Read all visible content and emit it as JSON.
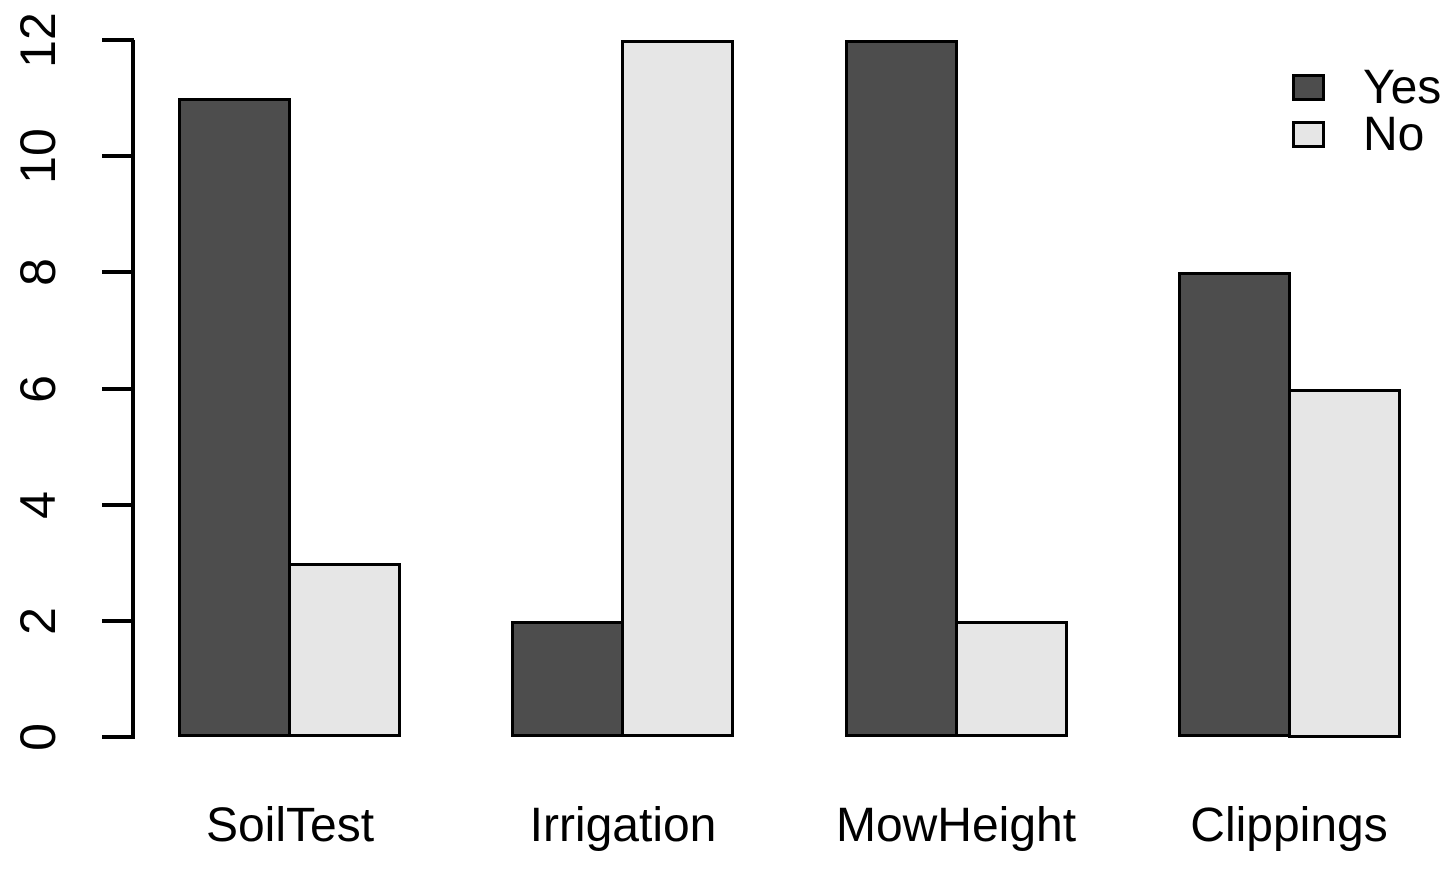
{
  "chart_data": {
    "type": "bar",
    "title": "",
    "xlabel": "",
    "ylabel": "",
    "categories": [
      "SoilTest",
      "Irrigation",
      "MowHeight",
      "Clippings"
    ],
    "series": [
      {
        "name": "Yes",
        "color": "#4d4d4d",
        "values": [
          11,
          2,
          12,
          8
        ]
      },
      {
        "name": "No",
        "color": "#e6e6e6",
        "values": [
          3,
          12,
          2,
          6
        ]
      }
    ],
    "ylim": [
      0,
      12
    ],
    "yticks": [
      0,
      2,
      4,
      6,
      8,
      10,
      12
    ],
    "grid": false,
    "legend_position": "top-right",
    "bar_border_color": "#000000",
    "axis_color": "#000000",
    "background_color": "#ffffff"
  }
}
